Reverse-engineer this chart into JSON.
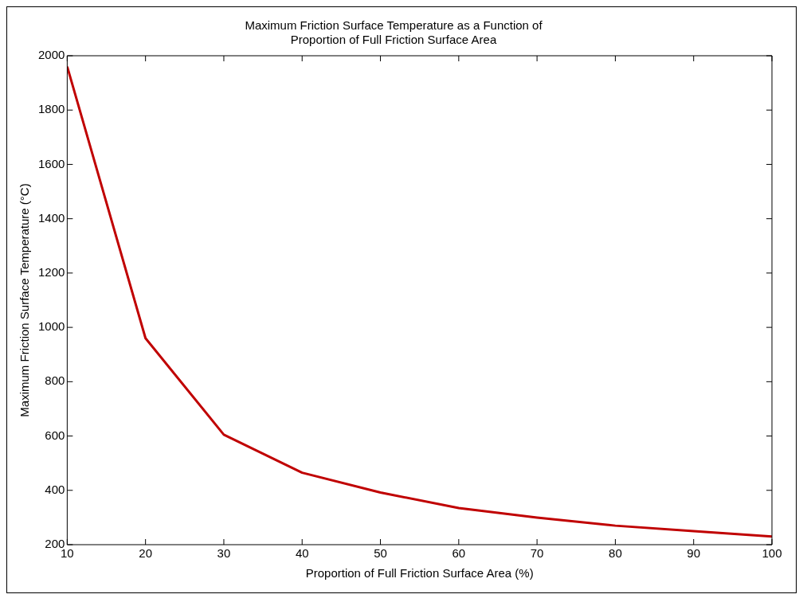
{
  "chart_data": {
    "type": "line",
    "title": "Maximum Friction Surface Temperature as a Function of\nProportion of Full Friction Surface Area",
    "xlabel": "Proportion of Full Friction Surface Area (%)",
    "ylabel": "Maximum Friction Surface Temperature (°C)",
    "x": [
      10,
      20,
      30,
      40,
      50,
      60,
      70,
      80,
      90,
      100
    ],
    "series": [
      {
        "color": "#c00000",
        "values": [
          1960,
          960,
          605,
          465,
          392,
          335,
          300,
          270,
          250,
          230
        ]
      }
    ],
    "xlim": [
      10,
      100
    ],
    "xticks": [
      10,
      20,
      30,
      40,
      50,
      60,
      70,
      80,
      90,
      100
    ],
    "ylim": [
      200,
      2000
    ],
    "yticks": [
      200,
      400,
      600,
      800,
      1000,
      1200,
      1400,
      1600,
      1800,
      2000
    ],
    "grid": false,
    "legend": false,
    "marker": "none",
    "line_style": "solid"
  }
}
